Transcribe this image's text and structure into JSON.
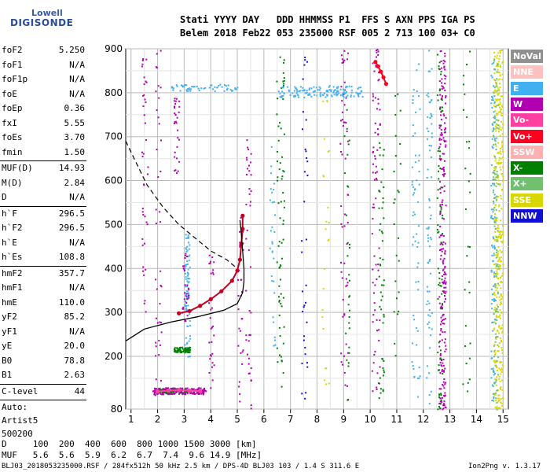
{
  "logo": {
    "line1": "Lowell",
    "line2": "DIGISONDE"
  },
  "header": {
    "line1": "Stati YYYY DAY   DDD HHMMSS P1  FFS S AXN PPS IGA PS",
    "line2": "Belem 2018 Feb22 053 235000 RSF 005 2 713 100 03+ C0"
  },
  "params": {
    "group1": [
      {
        "name": "foF2",
        "value": "5.250"
      },
      {
        "name": "foF1",
        "value": "N/A"
      },
      {
        "name": "foF1p",
        "value": "N/A"
      },
      {
        "name": "foE",
        "value": "N/A"
      },
      {
        "name": "foEp",
        "value": "0.36"
      },
      {
        "name": "fxI",
        "value": "5.55"
      },
      {
        "name": "foEs",
        "value": "3.70"
      },
      {
        "name": "fmin",
        "value": "1.50"
      }
    ],
    "group2": [
      {
        "name": "MUF(D)",
        "value": "14.93"
      },
      {
        "name": "M(D)",
        "value": "2.84"
      },
      {
        "name": "D",
        "value": "N/A"
      }
    ],
    "group3": [
      {
        "name": "h`F",
        "value": "296.5"
      },
      {
        "name": "h`F2",
        "value": "296.5"
      },
      {
        "name": "h`E",
        "value": "N/A"
      },
      {
        "name": "h`Es",
        "value": "108.8"
      }
    ],
    "group4": [
      {
        "name": "hmF2",
        "value": "357.7"
      },
      {
        "name": "hmF1",
        "value": "N/A"
      },
      {
        "name": "hmE",
        "value": "110.0"
      },
      {
        "name": "yF2",
        "value": "85.2"
      },
      {
        "name": "yF1",
        "value": "N/A"
      },
      {
        "name": "yE",
        "value": "20.0"
      },
      {
        "name": "B0",
        "value": "78.8"
      },
      {
        "name": "B1",
        "value": "2.63"
      }
    ],
    "clevel": {
      "name": "C-level",
      "value": "44"
    },
    "auto": [
      "Auto:",
      "Artist5",
      "500200"
    ]
  },
  "legend": [
    {
      "label": "NoVal",
      "color": "#909090"
    },
    {
      "label": "NNE",
      "color": "#ffc0c0"
    },
    {
      "label": "E",
      "color": "#40b0f0"
    },
    {
      "label": "W",
      "color": "#b000b0"
    },
    {
      "label": "Vo-",
      "color": "#ff40a0"
    },
    {
      "label": "Vo+",
      "color": "#ff0020"
    },
    {
      "label": "SSW",
      "color": "#ffb0b0"
    },
    {
      "label": "X-",
      "color": "#008000"
    },
    {
      "label": "X+",
      "color": "#70c070"
    },
    {
      "label": "SSE",
      "color": "#d8d800"
    },
    {
      "label": "NNW",
      "color": "#1010d0"
    }
  ],
  "chart_data": {
    "type": "scatter",
    "x_ticks": [
      "1",
      "2",
      "3",
      "4",
      "5",
      "6",
      "7",
      "8",
      "9",
      "10",
      "11",
      "12",
      "13",
      "14",
      "15"
    ],
    "y_ticks": [
      "80",
      "200",
      "300",
      "400",
      "500",
      "600",
      "700",
      "800",
      "900"
    ],
    "xlim": [
      0.8,
      15.2
    ],
    "ylim": [
      80,
      900
    ],
    "grid": true,
    "series": [
      {
        "name": "trace-F2",
        "values": [
          [
            2.8,
            298
          ],
          [
            3.2,
            303
          ],
          [
            3.6,
            315
          ],
          [
            4.0,
            330
          ],
          [
            4.4,
            348
          ],
          [
            4.8,
            372
          ],
          [
            5.0,
            395
          ],
          [
            5.1,
            420
          ],
          [
            5.15,
            455
          ],
          [
            5.2,
            490
          ],
          [
            5.2,
            520
          ]
        ]
      },
      {
        "name": "trace-Es",
        "values": [
          [
            2.0,
            120
          ],
          [
            2.4,
            122
          ],
          [
            2.8,
            123
          ],
          [
            3.2,
            122
          ],
          [
            3.6,
            121
          ]
        ]
      },
      {
        "name": "trace-W-upper",
        "values": [
          [
            10.2,
            870
          ],
          [
            10.3,
            860
          ],
          [
            10.4,
            848
          ],
          [
            10.5,
            835
          ],
          [
            10.6,
            820
          ]
        ]
      }
    ],
    "profile": [
      [
        0.8,
        235
      ],
      [
        1.5,
        262
      ],
      [
        2.5,
        278
      ],
      [
        3.5,
        290
      ],
      [
        4.5,
        305
      ],
      [
        5.0,
        320
      ],
      [
        5.2,
        345
      ],
      [
        5.25,
        370
      ],
      [
        5.25,
        400
      ],
      [
        5.2,
        440
      ],
      [
        5.15,
        480
      ],
      [
        5.1,
        510
      ]
    ],
    "dashed_curve": [
      [
        0.8,
        690
      ],
      [
        1.2,
        640
      ],
      [
        1.6,
        590
      ],
      [
        2.2,
        540
      ],
      [
        2.8,
        500
      ],
      [
        3.4,
        470
      ],
      [
        4.0,
        440
      ],
      [
        4.6,
        420
      ],
      [
        5.0,
        400
      ]
    ]
  },
  "footer": {
    "d_row": "D     100  200  400  600  800 1000 1500 3000 [km]",
    "muf_row": "MUF   5.6  5.6  5.9  6.2  6.7  7.4  9.6 14.9 [MHz]",
    "info": "BLJ03_2018053235000.RSF / 284fx512h 50 kHz 2.5 km / DPS-4D BLJ03 103 / 1.4 S 311.6 E",
    "version": "Ion2Png v. 1.3.17"
  }
}
